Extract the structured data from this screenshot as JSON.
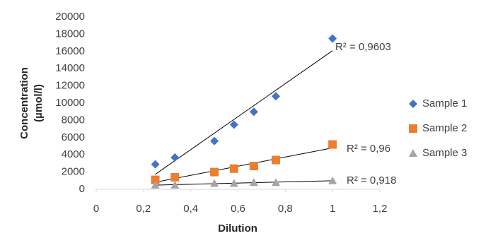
{
  "chart_data": {
    "type": "scatter",
    "xlabel": "Dilution",
    "ylabel": [
      "Concentration",
      "(µmol/l)"
    ],
    "x": [
      0.25,
      0.333,
      0.5,
      0.583,
      0.667,
      0.76,
      1.0
    ],
    "series": [
      {
        "name": "Sample 1",
        "color": "#4472c4",
        "marker": "diamond",
        "values": [
          2900,
          3700,
          5600,
          7500,
          9000,
          10800,
          17500
        ]
      },
      {
        "name": "Sample 2",
        "color": "#ed7d31",
        "marker": "square",
        "values": [
          1100,
          1400,
          2000,
          2400,
          2700,
          3400,
          5200
        ]
      },
      {
        "name": "Sample 3",
        "color": "#a5a5a5",
        "marker": "triangle",
        "values": [
          500,
          500,
          700,
          700,
          800,
          800,
          1000
        ]
      }
    ],
    "trendline": "linear",
    "annotations": [
      "R² = 0,9603",
      "R² = 0,96",
      "R² = 0,918"
    ],
    "xlim": [
      0,
      1.2
    ],
    "xticks": [
      0,
      {
        "value": 0.2,
        "label": "0,2"
      },
      {
        "value": 0.4,
        "label": "0,4"
      },
      {
        "value": 0.6,
        "label": "0,6"
      },
      {
        "value": 0.8,
        "label": "0,8"
      },
      1,
      {
        "value": 1.2,
        "label": "1,2"
      }
    ],
    "ylim": [
      0,
      20000
    ],
    "yticks": [
      0,
      2000,
      4000,
      6000,
      8000,
      10000,
      12000,
      14000,
      16000,
      18000,
      20000
    ],
    "grid": false,
    "legend": "right"
  }
}
